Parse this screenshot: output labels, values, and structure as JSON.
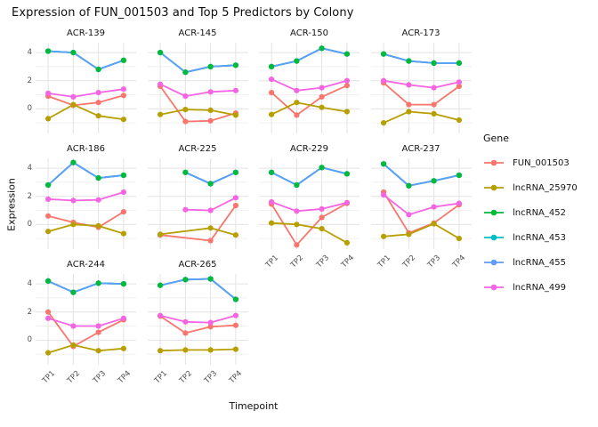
{
  "chart_data": {
    "type": "line",
    "title": "Expression of FUN_001503 and Top 5 Predictors by Colony",
    "xlabel": "Timepoint",
    "ylabel": "Expression",
    "legend_title": "Gene",
    "legend_position": "right",
    "x_categories": [
      "TP1",
      "TP2",
      "TP3",
      "TP4"
    ],
    "y_major_ticks": [
      0,
      2,
      4
    ],
    "y_minor_gridlines": [
      -1,
      1,
      3
    ],
    "ylim": [
      -1.75,
      4.7
    ],
    "grid": true,
    "panel_background": "#ffffff",
    "major_grid_color": "#e3e3e3",
    "minor_grid_color": "#f1f1f1",
    "series_meta": [
      {
        "name": "FUN_001503",
        "color": "#F8766D"
      },
      {
        "name": "lncRNA_25970",
        "color": "#B79F00"
      },
      {
        "name": "lncRNA_452",
        "color": "#00BA38"
      },
      {
        "name": "lncRNA_453",
        "color": "#00BFC4"
      },
      {
        "name": "lncRNA_455",
        "color": "#619CFF"
      },
      {
        "name": "lncRNA_499",
        "color": "#F564E3"
      }
    ],
    "note": "lncRNA_452, lncRNA_453 and lncRNA_455 overlap exactly in every facet (blue line visible with green markers on top)",
    "facets": [
      {
        "name": "ACR-139",
        "series": {
          "FUN_001503": [
            0.9,
            0.25,
            0.45,
            0.95
          ],
          "lncRNA_25970": [
            -0.7,
            0.3,
            -0.5,
            -0.75
          ],
          "lncRNA_452": [
            4.1,
            4.0,
            2.8,
            3.45
          ],
          "lncRNA_453": [
            4.1,
            4.0,
            2.8,
            3.45
          ],
          "lncRNA_455": [
            4.1,
            4.0,
            2.8,
            3.45
          ],
          "lncRNA_499": [
            1.1,
            0.85,
            1.15,
            1.4
          ]
        }
      },
      {
        "name": "ACR-145",
        "series": {
          "FUN_001503": [
            1.6,
            -0.9,
            -0.85,
            -0.3
          ],
          "lncRNA_25970": [
            -0.4,
            -0.05,
            -0.1,
            -0.45
          ],
          "lncRNA_452": [
            4.0,
            2.6,
            3.0,
            3.1
          ],
          "lncRNA_453": [
            4.0,
            2.6,
            3.0,
            3.1
          ],
          "lncRNA_455": [
            4.0,
            2.6,
            3.0,
            3.1
          ],
          "lncRNA_499": [
            1.75,
            0.9,
            1.2,
            1.3
          ]
        }
      },
      {
        "name": "ACR-150",
        "series": {
          "FUN_001503": [
            1.15,
            -0.45,
            0.85,
            1.65
          ],
          "lncRNA_25970": [
            -0.4,
            0.45,
            0.1,
            -0.2
          ],
          "lncRNA_452": [
            3.0,
            3.4,
            4.3,
            3.9
          ],
          "lncRNA_453": [
            3.0,
            3.4,
            4.3,
            3.9
          ],
          "lncRNA_455": [
            3.0,
            3.4,
            4.3,
            3.9
          ],
          "lncRNA_499": [
            2.1,
            1.3,
            1.5,
            2.0
          ]
        }
      },
      {
        "name": "ACR-173",
        "series": {
          "FUN_001503": [
            1.85,
            0.3,
            0.3,
            1.6
          ],
          "lncRNA_25970": [
            -1.0,
            -0.2,
            -0.35,
            -0.8
          ],
          "lncRNA_452": [
            3.9,
            3.4,
            3.25,
            3.25
          ],
          "lncRNA_453": [
            3.9,
            3.4,
            3.25,
            3.25
          ],
          "lncRNA_455": [
            3.9,
            3.4,
            3.25,
            3.25
          ],
          "lncRNA_499": [
            2.0,
            1.7,
            1.5,
            1.9
          ]
        }
      },
      {
        "name": "ACR-186",
        "series": {
          "FUN_001503": [
            0.6,
            0.15,
            -0.2,
            0.9
          ],
          "lncRNA_25970": [
            -0.5,
            0.0,
            -0.1,
            -0.65
          ],
          "lncRNA_452": [
            2.8,
            4.4,
            3.3,
            3.5
          ],
          "lncRNA_453": [
            2.8,
            4.4,
            3.3,
            3.5
          ],
          "lncRNA_455": [
            2.8,
            4.4,
            3.3,
            3.5
          ],
          "lncRNA_499": [
            1.8,
            1.7,
            1.75,
            2.3
          ]
        }
      },
      {
        "name": "ACR-225",
        "series": {
          "FUN_001503": [
            -0.75,
            null,
            -1.15,
            1.35
          ],
          "lncRNA_25970": [
            -0.7,
            null,
            -0.25,
            -0.75
          ],
          "lncRNA_452": [
            null,
            3.7,
            2.9,
            3.7
          ],
          "lncRNA_453": [
            null,
            3.7,
            2.9,
            3.7
          ],
          "lncRNA_455": [
            null,
            3.7,
            2.9,
            3.7
          ],
          "lncRNA_499": [
            null,
            1.05,
            1.0,
            1.9
          ]
        }
      },
      {
        "name": "ACR-229",
        "series": {
          "FUN_001503": [
            1.45,
            -1.45,
            0.5,
            1.5
          ],
          "lncRNA_25970": [
            0.1,
            0.0,
            -0.3,
            -1.3
          ],
          "lncRNA_452": [
            3.7,
            2.8,
            4.05,
            3.6
          ],
          "lncRNA_453": [
            3.7,
            2.8,
            4.05,
            3.6
          ],
          "lncRNA_455": [
            3.7,
            2.8,
            4.05,
            3.6
          ],
          "lncRNA_499": [
            1.6,
            0.95,
            1.1,
            1.55
          ]
        }
      },
      {
        "name": "ACR-237",
        "series": {
          "FUN_001503": [
            2.3,
            -0.6,
            0.1,
            1.4
          ],
          "lncRNA_25970": [
            -0.85,
            -0.7,
            0.05,
            -1.0
          ],
          "lncRNA_452": [
            4.3,
            2.75,
            3.1,
            3.5
          ],
          "lncRNA_453": [
            4.3,
            2.75,
            3.1,
            3.5
          ],
          "lncRNA_455": [
            4.3,
            2.75,
            3.1,
            3.5
          ],
          "lncRNA_499": [
            2.1,
            0.7,
            1.25,
            1.5
          ]
        }
      },
      {
        "name": "ACR-244",
        "series": {
          "FUN_001503": [
            2.0,
            -0.45,
            0.55,
            1.45
          ],
          "lncRNA_25970": [
            -0.9,
            -0.35,
            -0.75,
            -0.6
          ],
          "lncRNA_452": [
            4.2,
            3.4,
            4.05,
            4.0
          ],
          "lncRNA_453": [
            4.2,
            3.4,
            4.05,
            4.0
          ],
          "lncRNA_455": [
            4.2,
            3.4,
            4.05,
            4.0
          ],
          "lncRNA_499": [
            1.55,
            1.0,
            1.0,
            1.55
          ]
        }
      },
      {
        "name": "ACR-265",
        "series": {
          "FUN_001503": [
            1.7,
            0.5,
            0.95,
            1.05
          ],
          "lncRNA_25970": [
            -0.75,
            -0.7,
            -0.7,
            -0.65
          ],
          "lncRNA_452": [
            3.9,
            4.3,
            4.35,
            2.9
          ],
          "lncRNA_453": [
            3.9,
            4.3,
            4.35,
            2.9
          ],
          "lncRNA_455": [
            3.9,
            4.3,
            4.35,
            2.9
          ],
          "lncRNA_499": [
            1.75,
            1.3,
            1.25,
            1.75
          ]
        }
      }
    ]
  }
}
